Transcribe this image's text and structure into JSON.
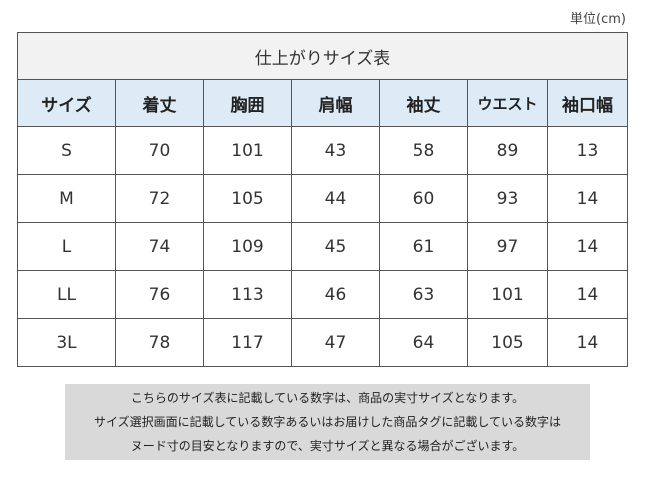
{
  "unit_label": "単位(cm)",
  "table": {
    "title": "仕上がりサイズ表",
    "headers": [
      "サイズ",
      "着丈",
      "胸囲",
      "肩幅",
      "袖丈",
      "ウエスト",
      "袖口幅"
    ],
    "rows": [
      [
        "S",
        "70",
        "101",
        "43",
        "58",
        "89",
        "13"
      ],
      [
        "M",
        "72",
        "105",
        "44",
        "60",
        "93",
        "14"
      ],
      [
        "L",
        "74",
        "109",
        "45",
        "61",
        "97",
        "14"
      ],
      [
        "LL",
        "76",
        "113",
        "46",
        "63",
        "101",
        "14"
      ],
      [
        "3L",
        "78",
        "117",
        "47",
        "64",
        "105",
        "14"
      ]
    ]
  },
  "notes": [
    "こちらのサイズ表に記載している数字は、商品の実寸サイズとなります。",
    "サイズ選択画面に記載している数字あるいはお届けした商品タグに記載している数字は",
    "ヌード寸の目安となりますので、実寸サイズと異なる場合がございます。"
  ],
  "colors": {
    "header_bg": "#ddebf7",
    "title_bg": "#f2f2f2",
    "note_bg": "#d9d9d9",
    "border": "#555555"
  }
}
